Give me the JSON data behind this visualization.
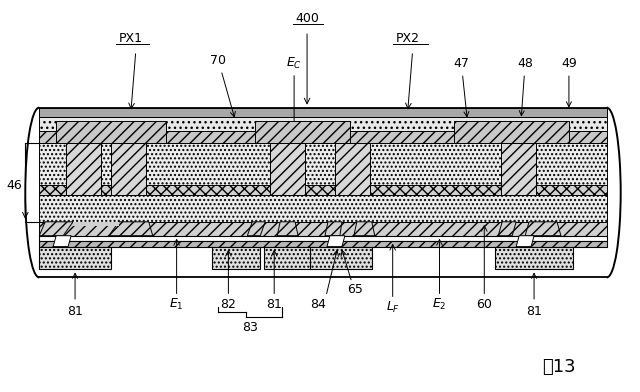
{
  "fig_width": 6.4,
  "fig_height": 3.92,
  "bg_color": "#ffffff",
  "figure_label": "図13",
  "label_fontsize": 13,
  "xl": 38,
  "xr": 608,
  "yt": 107,
  "yb": 278,
  "y49t": 107,
  "y49b": 116,
  "y48t": 116,
  "y48b": 131,
  "y47t": 131,
  "y47b": 143,
  "y46at": 143,
  "y46ab": 185,
  "ymidt": 185,
  "ymidb": 195,
  "y46bt": 195,
  "y46bb": 222,
  "yelt": 222,
  "yelb": 236,
  "ytf1t": 236,
  "ytf1b": 241,
  "ytf2t": 241,
  "ytf2b": 247,
  "ypad_t": 247,
  "ypad_b": 270,
  "fs": 9.0
}
